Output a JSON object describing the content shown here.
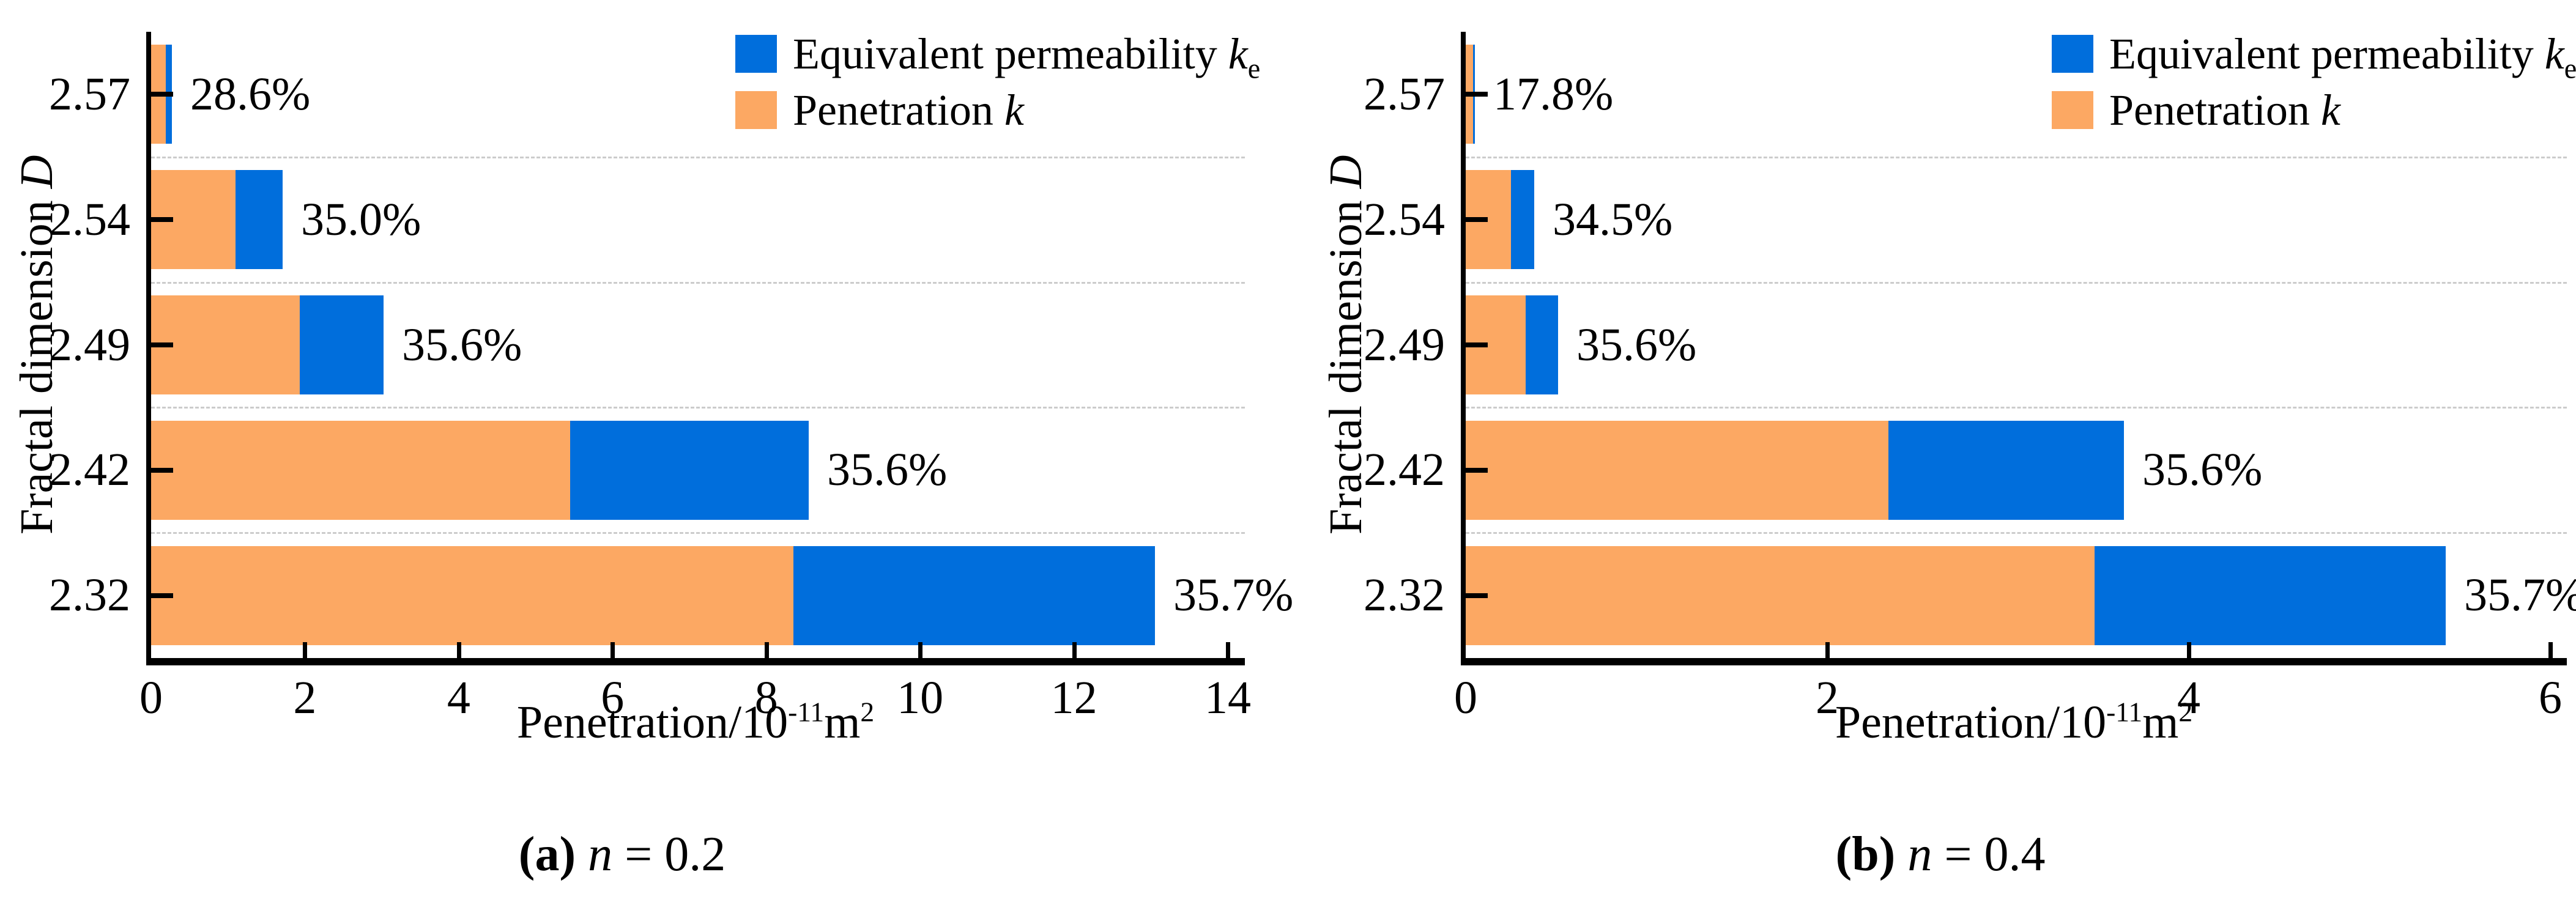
{
  "chart_data": {
    "type": "bar",
    "orientation": "horizontal",
    "stacked": true,
    "grid": "dashed horizontal separators between category bands",
    "legend_position": "top-right-inside-plot",
    "colors": {
      "equivalent_permeability": "#006EDC",
      "penetration": "#FCA863",
      "axis": "#000000",
      "gridline": "#CCCCCC"
    },
    "legend": [
      {
        "text": "Equivalent permeability ",
        "var": "k",
        "sub": "e"
      },
      {
        "text": "Penetration ",
        "var": "k",
        "sub": ""
      }
    ],
    "ylabel": {
      "text": "Fractal dimension ",
      "var": "D"
    },
    "xlabel": {
      "text": "Penetration/10",
      "sup1": "-11",
      "unit": "m",
      "sup2": "2"
    },
    "charts": [
      {
        "caption": {
          "bold": "(a) ",
          "var": "n",
          "rest": " = 0.2"
        },
        "xlim": [
          0,
          14
        ],
        "xticks": [
          "0",
          "2",
          "4",
          "6",
          "8",
          "10",
          "12",
          "14"
        ],
        "categories": [
          "2.57",
          "2.54",
          "2.49",
          "2.42",
          "2.32"
        ],
        "rows": [
          {
            "category": "2.57",
            "penetration_k": 0.19,
            "equivalent_permeability_ke": 0.27,
            "label": "28.6%"
          },
          {
            "category": "2.54",
            "penetration_k": 1.1,
            "equivalent_permeability_ke": 1.71,
            "label": "35.0%"
          },
          {
            "category": "2.49",
            "penetration_k": 1.93,
            "equivalent_permeability_ke": 3.02,
            "label": "35.6%"
          },
          {
            "category": "2.42",
            "penetration_k": 5.45,
            "equivalent_permeability_ke": 8.55,
            "label": "35.6%"
          },
          {
            "category": "2.32",
            "penetration_k": 8.35,
            "equivalent_permeability_ke": 13.05,
            "label": "35.7%"
          }
        ]
      },
      {
        "caption": {
          "bold": "(b) ",
          "var": "n",
          "rest": " = 0.4"
        },
        "xlim": [
          0,
          6
        ],
        "xticks": [
          "0",
          "2",
          "4",
          "6"
        ],
        "categories": [
          "2.57",
          "2.54",
          "2.49",
          "2.42",
          "2.32"
        ],
        "rows": [
          {
            "category": "2.57",
            "penetration_k": 0.04,
            "equivalent_permeability_ke": 0.05,
            "label": "17.8%"
          },
          {
            "category": "2.54",
            "penetration_k": 0.25,
            "equivalent_permeability_ke": 0.38,
            "label": "34.5%"
          },
          {
            "category": "2.49",
            "penetration_k": 0.33,
            "equivalent_permeability_ke": 0.51,
            "label": "35.6%"
          },
          {
            "category": "2.42",
            "penetration_k": 2.34,
            "equivalent_permeability_ke": 3.64,
            "label": "35.6%"
          },
          {
            "category": "2.32",
            "penetration_k": 3.48,
            "equivalent_permeability_ke": 5.42,
            "label": "35.7%"
          }
        ]
      }
    ]
  }
}
